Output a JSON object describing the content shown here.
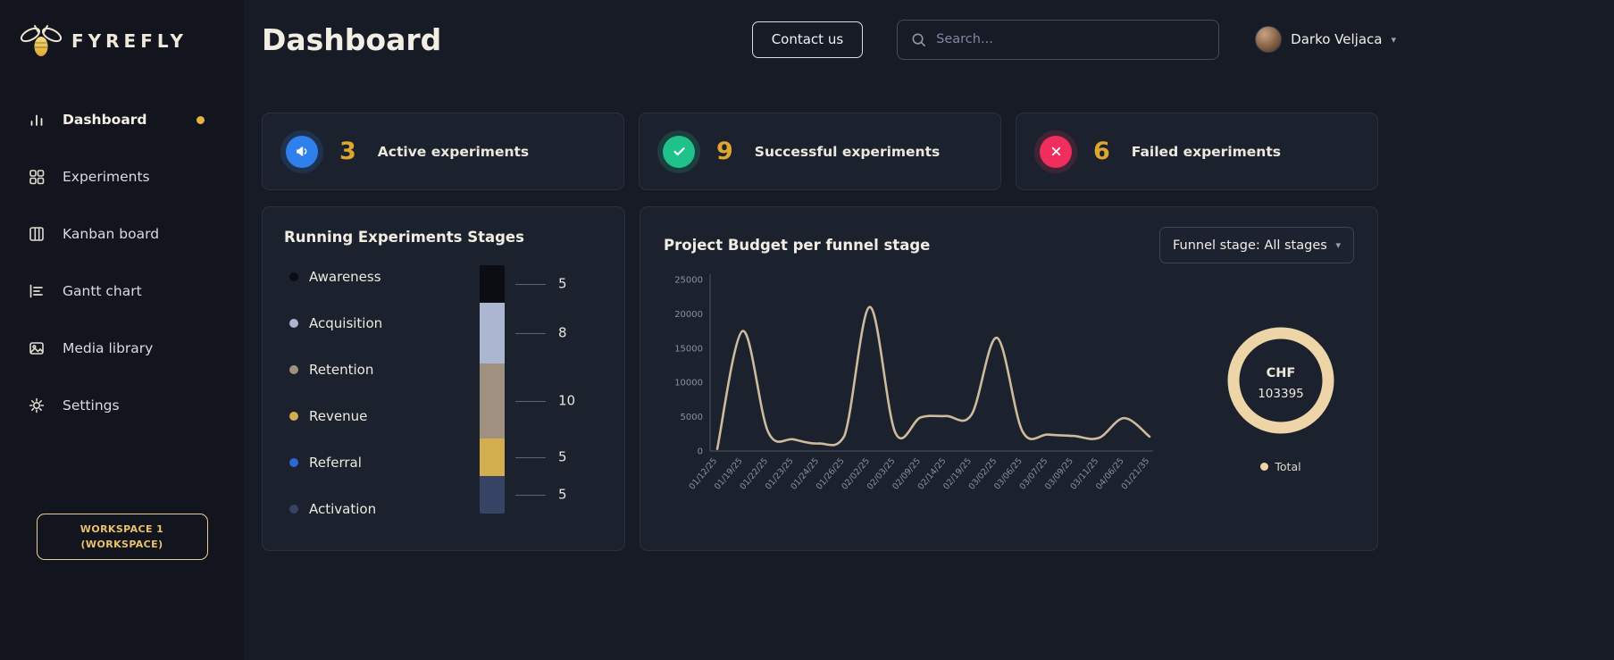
{
  "sidebar": {
    "logo_text": "FYREFLY",
    "items": [
      {
        "label": "Dashboard",
        "active": true
      },
      {
        "label": "Experiments",
        "active": false
      },
      {
        "label": "Kanban board",
        "active": false
      },
      {
        "label": "Gantt chart",
        "active": false
      },
      {
        "label": "Media library",
        "active": false
      },
      {
        "label": "Settings",
        "active": false
      }
    ],
    "workspace_line1": "WORKSPACE 1",
    "workspace_line2": "(WORKSPACE)"
  },
  "header": {
    "title": "Dashboard",
    "contact_button": "Contact us",
    "search_placeholder": "Search...",
    "user_name": "Darko Veljaca"
  },
  "stats": [
    {
      "value": "3",
      "label": "Active experiments",
      "icon": "megaphone-icon",
      "color": "#2f80ed"
    },
    {
      "value": "9",
      "label": "Successful experiments",
      "icon": "check-icon",
      "color": "#1fc28b"
    },
    {
      "value": "6",
      "label": "Failed experiments",
      "icon": "x-icon",
      "color": "#ef2e5e"
    }
  ],
  "stages_card": {
    "title": "Running Experiments Stages"
  },
  "budget_card": {
    "title": "Project Budget per funnel stage",
    "funnel_dropdown": "Funnel stage: All stages"
  },
  "chart_data": [
    {
      "type": "bar",
      "title": "Running Experiments Stages",
      "stacked": true,
      "legend": [
        {
          "label": "Awareness",
          "color": "#0b0d12"
        },
        {
          "label": "Acquisition",
          "color": "#abb6d0"
        },
        {
          "label": "Retention",
          "color": "#a09080"
        },
        {
          "label": "Revenue",
          "color": "#d3ae4e"
        },
        {
          "label": "Referral",
          "color": "#2d66d6"
        },
        {
          "label": "Activation",
          "color": "#364365"
        }
      ],
      "segments": [
        {
          "label": "Awareness",
          "value": 5,
          "color": "#0b0d12"
        },
        {
          "label": "Acquisition",
          "value": 8,
          "color": "#abb6d0"
        },
        {
          "label": "Retention",
          "value": 10,
          "color": "#a09080"
        },
        {
          "label": "Revenue",
          "value": 5,
          "color": "#d3ae4e"
        },
        {
          "label": "Activation",
          "value": 5,
          "color": "#364365"
        }
      ]
    },
    {
      "type": "line",
      "title": "Project Budget per funnel stage",
      "x": [
        "01/12/25",
        "01/19/25",
        "01/22/25",
        "01/23/25",
        "01/24/25",
        "01/26/25",
        "02/02/25",
        "02/03/25",
        "02/09/25",
        "02/14/25",
        "02/19/25",
        "03/02/25",
        "03/06/25",
        "03/07/25",
        "03/09/25",
        "03/11/25",
        "04/06/25",
        "01/21/35"
      ],
      "series": [
        {
          "name": "Budget",
          "values": [
            300,
            17500,
            2800,
            1700,
            1100,
            2200,
            21000,
            2700,
            4900,
            5100,
            5300,
            16500,
            2900,
            2400,
            2200,
            1900,
            4800,
            2100
          ]
        }
      ],
      "ylim": [
        0,
        25000
      ],
      "yticks": [
        0,
        5000,
        10000,
        15000,
        20000,
        25000
      ],
      "line_color": "#cdbb9b",
      "grid": false,
      "legend_position": "none"
    },
    {
      "type": "donut",
      "center_label": "CHF",
      "center_value": "103395",
      "ring_color": "#edd5a8",
      "values": [
        {
          "label": "Total",
          "value": 103395
        }
      ],
      "legend": [
        {
          "label": "Total",
          "color": "#edd5a8"
        }
      ]
    }
  ]
}
